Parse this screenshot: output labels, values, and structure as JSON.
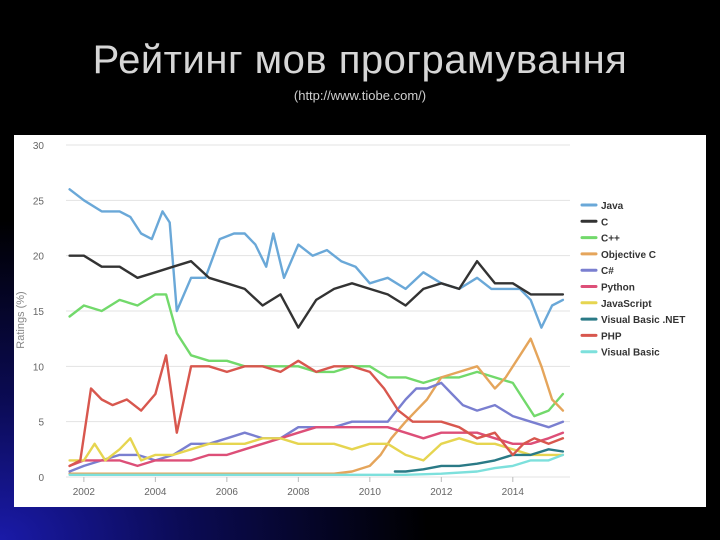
{
  "slide": {
    "title": "Рейтинг мов програмування",
    "subtitle": "(http://www.tiobe.com/)"
  },
  "chart_data": {
    "type": "line",
    "title": "",
    "xlabel": "",
    "ylabel": "Ratings (%)",
    "xlim": [
      2001.5,
      2015.6
    ],
    "ylim": [
      0,
      30
    ],
    "x_ticks": [
      "2002",
      "2004",
      "2006",
      "2008",
      "2010",
      "2012",
      "2014"
    ],
    "y_ticks": [
      "0",
      "5",
      "10",
      "15",
      "20",
      "25",
      "30"
    ],
    "grid": true,
    "legend_position": "right",
    "series": [
      {
        "name": "Java",
        "color": "#6aa8d8",
        "x": [
          2001.6,
          2002.0,
          2002.5,
          2003.0,
          2003.3,
          2003.6,
          2003.9,
          2004.2,
          2004.4,
          2004.6,
          2005.0,
          2005.4,
          2005.8,
          2006.2,
          2006.5,
          2006.8,
          2007.1,
          2007.3,
          2007.6,
          2008.0,
          2008.4,
          2008.8,
          2009.2,
          2009.6,
          2010.0,
          2010.5,
          2011.0,
          2011.5,
          2012.0,
          2012.5,
          2013.0,
          2013.4,
          2013.8,
          2014.2,
          2014.5,
          2014.8,
          2015.1,
          2015.4
        ],
        "y": [
          26,
          25,
          24,
          24,
          23.5,
          22,
          21.5,
          24,
          23,
          15,
          18,
          18,
          21.5,
          22,
          22,
          21,
          19,
          22,
          18,
          21,
          20,
          20.5,
          19.5,
          19,
          17.5,
          18,
          17,
          18.5,
          17.5,
          17,
          18,
          17,
          17,
          17,
          16,
          13.5,
          15.5,
          16
        ]
      },
      {
        "name": "C",
        "color": "#333333",
        "x": [
          2001.6,
          2002.0,
          2002.5,
          2003.0,
          2003.5,
          2004.0,
          2004.5,
          2005.0,
          2005.5,
          2006.0,
          2006.5,
          2007.0,
          2007.5,
          2008.0,
          2008.5,
          2009.0,
          2009.5,
          2010.0,
          2010.5,
          2011.0,
          2011.5,
          2012.0,
          2012.5,
          2013.0,
          2013.5,
          2014.0,
          2014.5,
          2015.0,
          2015.4
        ],
        "y": [
          20,
          20,
          19,
          19,
          18,
          18.5,
          19,
          19.5,
          18,
          17.5,
          17,
          15.5,
          16.5,
          13.5,
          16,
          17,
          17.5,
          17,
          16.5,
          15.5,
          17,
          17.5,
          17,
          19.5,
          17.5,
          17.5,
          16.5,
          16.5,
          16.5
        ]
      },
      {
        "name": "C++",
        "color": "#72d96b",
        "x": [
          2001.6,
          2002.0,
          2002.5,
          2003.0,
          2003.5,
          2004.0,
          2004.3,
          2004.6,
          2005.0,
          2005.5,
          2006.0,
          2006.5,
          2007.0,
          2007.5,
          2008.0,
          2008.5,
          2009.0,
          2009.5,
          2010.0,
          2010.5,
          2011.0,
          2011.5,
          2012.0,
          2012.5,
          2013.0,
          2013.5,
          2014.0,
          2014.3,
          2014.6,
          2015.0,
          2015.4
        ],
        "y": [
          14.5,
          15.5,
          15,
          16,
          15.5,
          16.5,
          16.5,
          13,
          11,
          10.5,
          10.5,
          10,
          10,
          10,
          10,
          9.5,
          9.5,
          10,
          10,
          9,
          9,
          8.5,
          9,
          9,
          9.5,
          9,
          8.5,
          7,
          5.5,
          6,
          7.5
        ]
      },
      {
        "name": "Objective C",
        "color": "#e5a55b",
        "x": [
          2001.6,
          2003.0,
          2005.0,
          2007.0,
          2009.0,
          2009.5,
          2010.0,
          2010.3,
          2010.6,
          2011.0,
          2011.3,
          2011.6,
          2012.0,
          2012.5,
          2013.0,
          2013.5,
          2013.8,
          2014.2,
          2014.5,
          2014.8,
          2015.1,
          2015.4
        ],
        "y": [
          0.3,
          0.3,
          0.3,
          0.3,
          0.3,
          0.5,
          1,
          2,
          3.5,
          5,
          6,
          7,
          9,
          9.5,
          10,
          8,
          9,
          11,
          12.5,
          10,
          7,
          6
        ]
      },
      {
        "name": "C#",
        "color": "#7a7fd0",
        "x": [
          2001.6,
          2002.0,
          2002.5,
          2003.0,
          2003.5,
          2004.0,
          2004.5,
          2005.0,
          2005.5,
          2006.0,
          2006.5,
          2007.0,
          2007.5,
          2008.0,
          2008.5,
          2009.0,
          2009.5,
          2010.0,
          2010.5,
          2011.0,
          2011.3,
          2011.6,
          2012.0,
          2012.3,
          2012.6,
          2013.0,
          2013.5,
          2014.0,
          2014.5,
          2015.0,
          2015.4
        ],
        "y": [
          0.5,
          1,
          1.5,
          2,
          2,
          1.5,
          2,
          3,
          3,
          3.5,
          4,
          3.5,
          3.5,
          4.5,
          4.5,
          4.5,
          5,
          5,
          5,
          7,
          8,
          8,
          8.5,
          7.5,
          6.5,
          6,
          6.5,
          5.5,
          5,
          4.5,
          5
        ]
      },
      {
        "name": "Python",
        "color": "#dd4f78",
        "x": [
          2001.6,
          2002.0,
          2002.5,
          2003.0,
          2003.5,
          2004.0,
          2004.5,
          2005.0,
          2005.5,
          2006.0,
          2006.5,
          2007.0,
          2007.5,
          2008.0,
          2008.5,
          2009.0,
          2009.5,
          2010.0,
          2010.5,
          2011.0,
          2011.5,
          2012.0,
          2012.5,
          2013.0,
          2013.5,
          2014.0,
          2014.5,
          2015.0,
          2015.4
        ],
        "y": [
          1,
          1.5,
          1.5,
          1.5,
          1,
          1.5,
          1.5,
          1.5,
          2,
          2,
          2.5,
          3,
          3.5,
          4,
          4.5,
          4.5,
          4.5,
          4.5,
          4.5,
          4,
          3.5,
          4,
          4,
          4,
          3.5,
          3,
          3,
          3.5,
          4
        ]
      },
      {
        "name": "JavaScript",
        "color": "#e6d550",
        "x": [
          2001.6,
          2002.0,
          2002.3,
          2002.6,
          2003.0,
          2003.3,
          2003.6,
          2004.0,
          2004.5,
          2005.0,
          2005.5,
          2006.0,
          2006.5,
          2007.0,
          2007.5,
          2008.0,
          2008.5,
          2009.0,
          2009.5,
          2010.0,
          2010.5,
          2011.0,
          2011.5,
          2012.0,
          2012.5,
          2013.0,
          2013.5,
          2014.0,
          2014.5,
          2015.0,
          2015.4
        ],
        "y": [
          1.5,
          1.5,
          3,
          1.5,
          2.5,
          3.5,
          1.5,
          2,
          2,
          2.5,
          3,
          3,
          3,
          3.5,
          3.5,
          3,
          3,
          3,
          2.5,
          3,
          3,
          2,
          1.5,
          3,
          3.5,
          3,
          3,
          2.5,
          2,
          2,
          2
        ]
      },
      {
        "name": "Visual Basic .NET",
        "color": "#2a7a86",
        "x": [
          2010.7,
          2011.0,
          2011.5,
          2012.0,
          2012.5,
          2013.0,
          2013.5,
          2014.0,
          2014.5,
          2015.0,
          2015.4
        ],
        "y": [
          0.5,
          0.5,
          0.7,
          1,
          1,
          1.2,
          1.5,
          2,
          2,
          2.5,
          2.3
        ]
      },
      {
        "name": "PHP",
        "color": "#d8574e",
        "x": [
          2001.6,
          2001.9,
          2002.2,
          2002.5,
          2002.8,
          2003.2,
          2003.6,
          2004.0,
          2004.3,
          2004.6,
          2005.0,
          2005.5,
          2006.0,
          2006.5,
          2007.0,
          2007.5,
          2008.0,
          2008.5,
          2009.0,
          2009.5,
          2010.0,
          2010.4,
          2010.8,
          2011.2,
          2011.6,
          2012.0,
          2012.5,
          2013.0,
          2013.5,
          2014.0,
          2014.3,
          2014.6,
          2015.0,
          2015.4
        ],
        "y": [
          1,
          1.5,
          8,
          7,
          6.5,
          7,
          6,
          7.5,
          11,
          4,
          10,
          10,
          9.5,
          10,
          10,
          9.5,
          10.5,
          9.5,
          10,
          10,
          9.5,
          8,
          6,
          5,
          5,
          5,
          4.5,
          3.5,
          4,
          2,
          3,
          3.5,
          3,
          3.5
        ]
      },
      {
        "name": "Visual Basic",
        "color": "#7de0dc",
        "x": [
          2001.6,
          2002.0,
          2003.0,
          2004.0,
          2005.0,
          2006.0,
          2007.0,
          2008.0,
          2009.0,
          2010.0,
          2011.0,
          2012.0,
          2013.0,
          2013.5,
          2014.0,
          2014.5,
          2015.0,
          2015.4
        ],
        "y": [
          0.2,
          0.2,
          0.2,
          0.2,
          0.2,
          0.2,
          0.2,
          0.2,
          0.2,
          0.2,
          0.2,
          0.3,
          0.5,
          0.8,
          1,
          1.5,
          1.5,
          2
        ]
      }
    ]
  }
}
